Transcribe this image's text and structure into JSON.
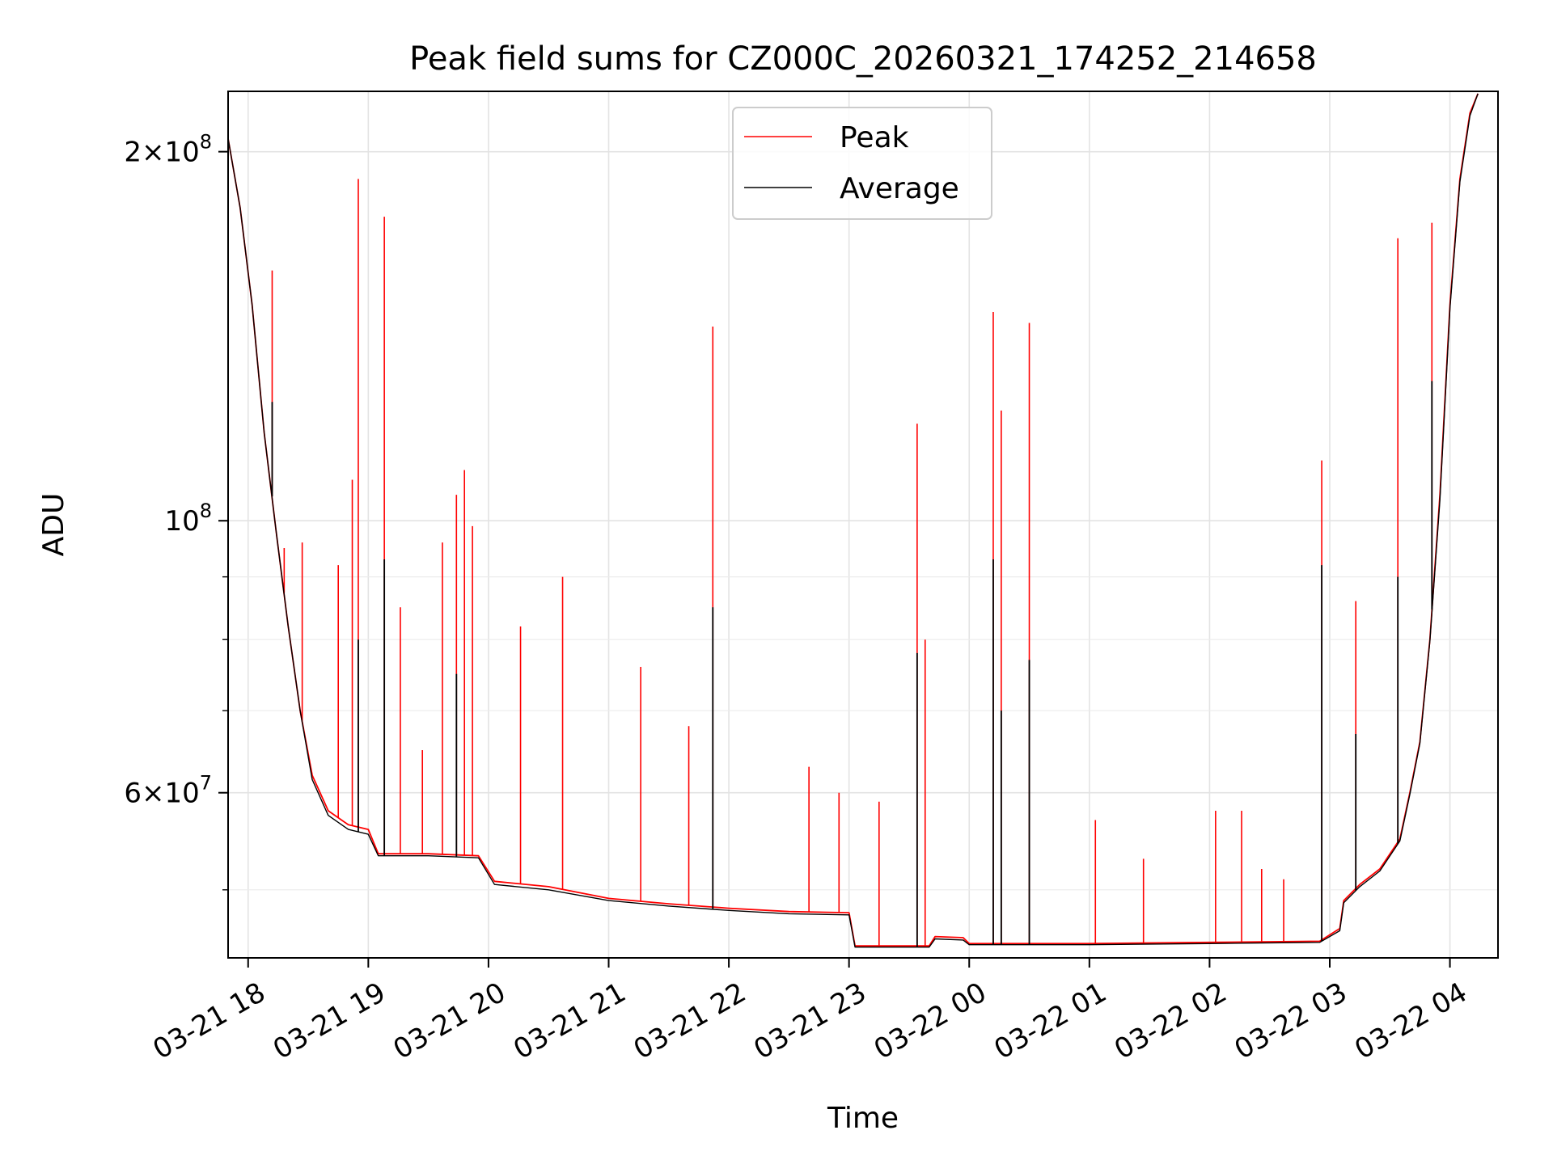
{
  "chart_data": {
    "type": "line",
    "title": "Peak field sums for CZ000C_20260321_174252_214658",
    "xlabel": "Time",
    "ylabel": "ADU",
    "y_scale": "log",
    "ylim": [
      44000000,
      224000000
    ],
    "xlim": [
      "2026-03-21 17:50",
      "2026-03-22 04:24"
    ],
    "grid": true,
    "legend_position": "top-center",
    "x_ticks": [
      {
        "t": "2026-03-21 18:00",
        "label": "03-21 18"
      },
      {
        "t": "2026-03-21 19:00",
        "label": "03-21 19"
      },
      {
        "t": "2026-03-21 20:00",
        "label": "03-21 20"
      },
      {
        "t": "2026-03-21 21:00",
        "label": "03-21 21"
      },
      {
        "t": "2026-03-21 22:00",
        "label": "03-21 22"
      },
      {
        "t": "2026-03-21 23:00",
        "label": "03-21 23"
      },
      {
        "t": "2026-03-22 00:00",
        "label": "03-22 00"
      },
      {
        "t": "2026-03-22 01:00",
        "label": "03-22 01"
      },
      {
        "t": "2026-03-22 02:00",
        "label": "03-22 02"
      },
      {
        "t": "2026-03-22 03:00",
        "label": "03-22 03"
      },
      {
        "t": "2026-03-22 04:00",
        "label": "03-22 04"
      }
    ],
    "y_ticks": [
      {
        "value": 200000000,
        "mantissa": "2",
        "exponent": "8"
      },
      {
        "value": 100000000,
        "mantissa": "",
        "exponent": "8"
      },
      {
        "value": 60000000,
        "mantissa": "6",
        "exponent": "7"
      }
    ],
    "y_minor_ticks": [
      50000000,
      70000000,
      80000000,
      90000000
    ],
    "series": [
      {
        "name": "Peak",
        "color": "#ff0000",
        "baseline": [
          [
            "2026-03-21 17:50",
            205000000
          ],
          [
            "2026-03-21 17:56",
            180000000
          ],
          [
            "2026-03-21 18:02",
            150000000
          ],
          [
            "2026-03-21 18:08",
            118000000
          ],
          [
            "2026-03-21 18:14",
            98000000
          ],
          [
            "2026-03-21 18:20",
            82000000
          ],
          [
            "2026-03-21 18:26",
            70000000
          ],
          [
            "2026-03-21 18:32",
            62000000
          ],
          [
            "2026-03-21 18:40",
            58000000
          ],
          [
            "2026-03-21 18:50",
            56500000
          ],
          [
            "2026-03-21 19:00",
            56000000
          ],
          [
            "2026-03-21 19:05",
            53500000
          ],
          [
            "2026-03-21 19:30",
            53500000
          ],
          [
            "2026-03-21 19:55",
            53300000
          ],
          [
            "2026-03-21 20:03",
            50800000
          ],
          [
            "2026-03-21 20:30",
            50300000
          ],
          [
            "2026-03-21 21:00",
            49200000
          ],
          [
            "2026-03-21 21:30",
            48700000
          ],
          [
            "2026-03-21 22:00",
            48300000
          ],
          [
            "2026-03-21 22:30",
            48000000
          ],
          [
            "2026-03-21 23:00",
            47900000
          ],
          [
            "2026-03-21 23:03",
            45000000
          ],
          [
            "2026-03-21 23:40",
            45000000
          ],
          [
            "2026-03-21 23:43",
            45800000
          ],
          [
            "2026-03-21 23:57",
            45700000
          ],
          [
            "2026-03-22 00:00",
            45200000
          ],
          [
            "2026-03-22 01:00",
            45200000
          ],
          [
            "2026-03-22 02:00",
            45300000
          ],
          [
            "2026-03-22 02:55",
            45400000
          ],
          [
            "2026-03-22 03:05",
            46500000
          ],
          [
            "2026-03-22 03:07",
            49000000
          ],
          [
            "2026-03-22 03:15",
            50500000
          ],
          [
            "2026-03-22 03:25",
            52000000
          ],
          [
            "2026-03-22 03:35",
            55000000
          ],
          [
            "2026-03-22 03:40",
            60000000
          ],
          [
            "2026-03-22 03:45",
            66000000
          ],
          [
            "2026-03-22 03:50",
            80000000
          ],
          [
            "2026-03-22 03:55",
            105000000
          ],
          [
            "2026-03-22 04:00",
            150000000
          ],
          [
            "2026-03-22 04:05",
            190000000
          ],
          [
            "2026-03-22 04:10",
            215000000
          ],
          [
            "2026-03-22 04:14",
            223000000
          ]
        ],
        "spikes": [
          [
            "2026-03-21 18:12",
            160000000
          ],
          [
            "2026-03-21 18:18",
            95000000
          ],
          [
            "2026-03-21 18:27",
            96000000
          ],
          [
            "2026-03-21 18:45",
            92000000
          ],
          [
            "2026-03-21 18:52",
            108000000
          ],
          [
            "2026-03-21 18:55",
            190000000
          ],
          [
            "2026-03-21 19:08",
            177000000
          ],
          [
            "2026-03-21 19:16",
            85000000
          ],
          [
            "2026-03-21 19:27",
            65000000
          ],
          [
            "2026-03-21 19:37",
            96000000
          ],
          [
            "2026-03-21 19:44",
            105000000
          ],
          [
            "2026-03-21 19:48",
            110000000
          ],
          [
            "2026-03-21 19:52",
            99000000
          ],
          [
            "2026-03-21 20:16",
            82000000
          ],
          [
            "2026-03-21 20:37",
            90000000
          ],
          [
            "2026-03-21 21:16",
            76000000
          ],
          [
            "2026-03-21 21:40",
            68000000
          ],
          [
            "2026-03-21 21:52",
            144000000
          ],
          [
            "2026-03-21 22:40",
            63000000
          ],
          [
            "2026-03-21 22:55",
            60000000
          ],
          [
            "2026-03-21 23:15",
            59000000
          ],
          [
            "2026-03-21 23:34",
            120000000
          ],
          [
            "2026-03-21 23:38",
            80000000
          ],
          [
            "2026-03-22 00:12",
            148000000
          ],
          [
            "2026-03-22 00:16",
            123000000
          ],
          [
            "2026-03-22 00:30",
            145000000
          ],
          [
            "2026-03-22 01:03",
            57000000
          ],
          [
            "2026-03-22 01:27",
            53000000
          ],
          [
            "2026-03-22 02:03",
            58000000
          ],
          [
            "2026-03-22 02:16",
            58000000
          ],
          [
            "2026-03-22 02:26",
            52000000
          ],
          [
            "2026-03-22 02:37",
            51000000
          ],
          [
            "2026-03-22 02:56",
            112000000
          ],
          [
            "2026-03-22 03:13",
            86000000
          ],
          [
            "2026-03-22 03:34",
            170000000
          ],
          [
            "2026-03-22 03:51",
            175000000
          ]
        ]
      },
      {
        "name": "Average",
        "color": "#000000",
        "baseline": [
          [
            "2026-03-21 17:50",
            205000000
          ],
          [
            "2026-03-21 17:56",
            180000000
          ],
          [
            "2026-03-21 18:02",
            150000000
          ],
          [
            "2026-03-21 18:08",
            118000000
          ],
          [
            "2026-03-21 18:14",
            98000000
          ],
          [
            "2026-03-21 18:20",
            82000000
          ],
          [
            "2026-03-21 18:26",
            70000000
          ],
          [
            "2026-03-21 18:32",
            61500000
          ],
          [
            "2026-03-21 18:40",
            57500000
          ],
          [
            "2026-03-21 18:50",
            56000000
          ],
          [
            "2026-03-21 19:00",
            55500000
          ],
          [
            "2026-03-21 19:05",
            53300000
          ],
          [
            "2026-03-21 19:30",
            53300000
          ],
          [
            "2026-03-21 19:55",
            53100000
          ],
          [
            "2026-03-21 20:03",
            50500000
          ],
          [
            "2026-03-21 20:30",
            50000000
          ],
          [
            "2026-03-21 21:00",
            49000000
          ],
          [
            "2026-03-21 21:30",
            48500000
          ],
          [
            "2026-03-21 22:00",
            48100000
          ],
          [
            "2026-03-21 22:30",
            47800000
          ],
          [
            "2026-03-21 23:00",
            47700000
          ],
          [
            "2026-03-21 23:03",
            44900000
          ],
          [
            "2026-03-21 23:40",
            44900000
          ],
          [
            "2026-03-21 23:43",
            45600000
          ],
          [
            "2026-03-21 23:57",
            45500000
          ],
          [
            "2026-03-22 00:00",
            45100000
          ],
          [
            "2026-03-22 01:00",
            45100000
          ],
          [
            "2026-03-22 02:00",
            45200000
          ],
          [
            "2026-03-22 02:55",
            45300000
          ],
          [
            "2026-03-22 03:05",
            46300000
          ],
          [
            "2026-03-22 03:07",
            48800000
          ],
          [
            "2026-03-22 03:15",
            50300000
          ],
          [
            "2026-03-22 03:25",
            51800000
          ],
          [
            "2026-03-22 03:35",
            54800000
          ],
          [
            "2026-03-22 03:40",
            59800000
          ],
          [
            "2026-03-22 03:45",
            65800000
          ],
          [
            "2026-03-22 03:50",
            79800000
          ],
          [
            "2026-03-22 03:55",
            104000000
          ],
          [
            "2026-03-22 04:00",
            149000000
          ],
          [
            "2026-03-22 04:05",
            189000000
          ],
          [
            "2026-03-22 04:10",
            214000000
          ],
          [
            "2026-03-22 04:14",
            223000000
          ]
        ],
        "spikes": [
          [
            "2026-03-21 18:12",
            125000000
          ],
          [
            "2026-03-21 18:55",
            80000000
          ],
          [
            "2026-03-21 19:08",
            93000000
          ],
          [
            "2026-03-21 19:44",
            75000000
          ],
          [
            "2026-03-21 21:52",
            85000000
          ],
          [
            "2026-03-21 23:34",
            78000000
          ],
          [
            "2026-03-22 00:12",
            93000000
          ],
          [
            "2026-03-22 00:16",
            70000000
          ],
          [
            "2026-03-22 00:30",
            77000000
          ],
          [
            "2026-03-22 02:56",
            92000000
          ],
          [
            "2026-03-22 03:13",
            67000000
          ],
          [
            "2026-03-22 03:34",
            90000000
          ],
          [
            "2026-03-22 03:51",
            130000000
          ]
        ]
      }
    ]
  }
}
